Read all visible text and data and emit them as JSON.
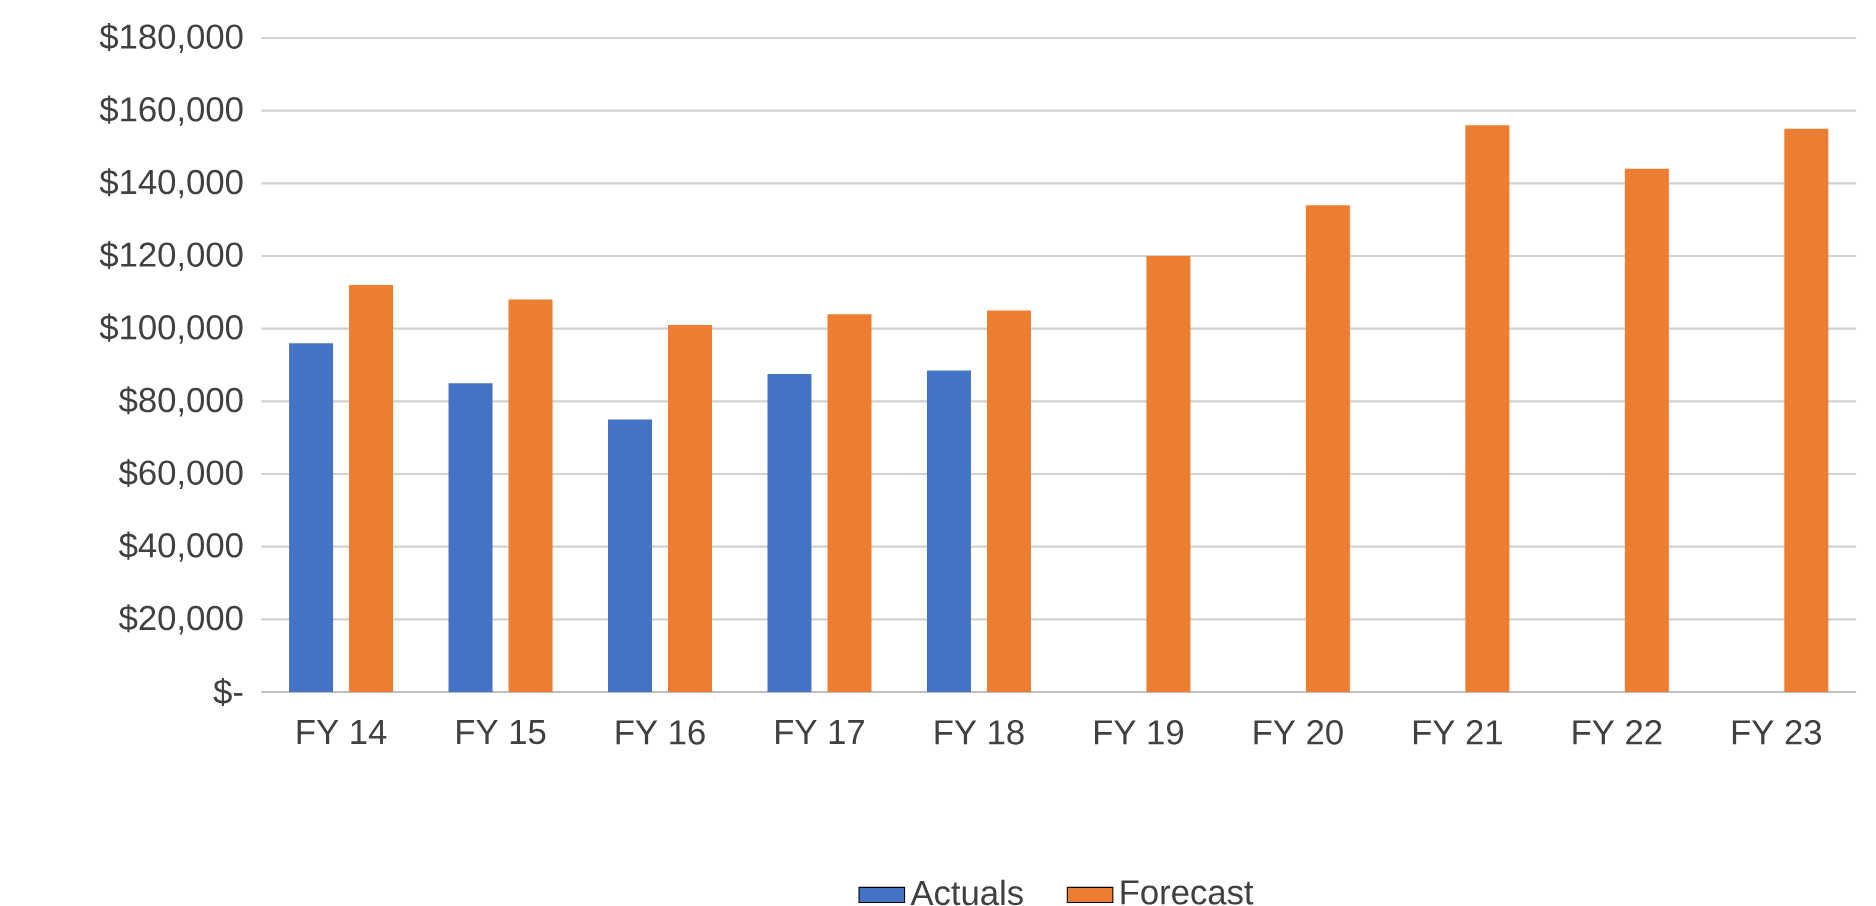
{
  "chart_data": {
    "type": "bar",
    "categories": [
      "FY 14",
      "FY 15",
      "FY 16",
      "FY 17",
      "FY 18",
      "FY 19",
      "FY 20",
      "FY 21",
      "FY 22",
      "FY 23"
    ],
    "series": [
      {
        "name": "Actuals",
        "color": "#4472c4",
        "values": [
          96000,
          85000,
          75000,
          87500,
          88500,
          null,
          null,
          null,
          null,
          null
        ]
      },
      {
        "name": "Forecast",
        "color": "#ed7d31",
        "values": [
          112000,
          108000,
          101000,
          104000,
          105000,
          120000,
          134000,
          156000,
          144000,
          155000
        ]
      }
    ],
    "ylim": [
      0,
      180000
    ],
    "yticks": [
      {
        "value": 0,
        "label": "$-"
      },
      {
        "value": 20000,
        "label": "$20,000"
      },
      {
        "value": 40000,
        "label": "$40,000"
      },
      {
        "value": 60000,
        "label": "$60,000"
      },
      {
        "value": 80000,
        "label": "$80,000"
      },
      {
        "value": 100000,
        "label": "$100,000"
      },
      {
        "value": 120000,
        "label": "$120,000"
      },
      {
        "value": 140000,
        "label": "$140,000"
      },
      {
        "value": 160000,
        "label": "$160,000"
      },
      {
        "value": 180000,
        "label": "$180,000"
      }
    ],
    "grid": "y",
    "legend": "bottom"
  }
}
